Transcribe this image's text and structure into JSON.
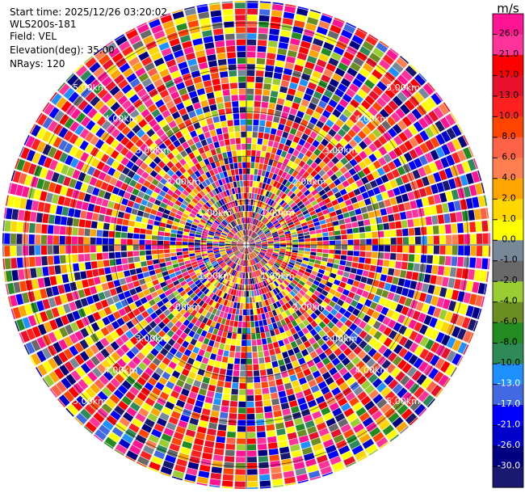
{
  "metadata": {
    "start_time": "Start time: 2025/12/26 03:20:02",
    "instrument": "WLS200s-181",
    "field": "Field: VEL",
    "elevation": "Elevation(deg): 35.00",
    "nrays": "NRays: 120"
  },
  "chart_data": {
    "type": "heatmap",
    "projection": "polar-ppi",
    "field": "VEL",
    "rays": 120,
    "range_rings_km": [
      1,
      2,
      3,
      4,
      5
    ],
    "range_labels": [
      "1.00km",
      "2.00km",
      "3.00km",
      "4.00km",
      "5.00km"
    ],
    "max_range_km": 5.5,
    "colorbar": {
      "unit": "m/s",
      "tick_labels": [
        "26.0",
        "21.0",
        "17.0",
        "13.0",
        "10.0",
        "8.0",
        "6.0",
        "4.0",
        "2.0",
        "1.0",
        "0.0",
        "-1.0",
        "-2.0",
        "-4.0",
        "-6.0",
        "-8.0",
        "-10.0",
        "-13.0",
        "-17.0",
        "-21.0",
        "-26.0",
        "-30.0"
      ],
      "colors": [
        "#ff1493",
        "#ff3399",
        "#ff0000",
        "#e8102a",
        "#ff2020",
        "#ff4500",
        "#ff6347",
        "#ff7f50",
        "#ffa500",
        "#ffd700",
        "#ffff00",
        "#778899",
        "#696969",
        "#9acd32",
        "#6b8e23",
        "#228b22",
        "#2e8b57",
        "#1e90ff",
        "#4169e1",
        "#0000ff",
        "#0000cd",
        "#000080",
        "#191970"
      ]
    }
  }
}
